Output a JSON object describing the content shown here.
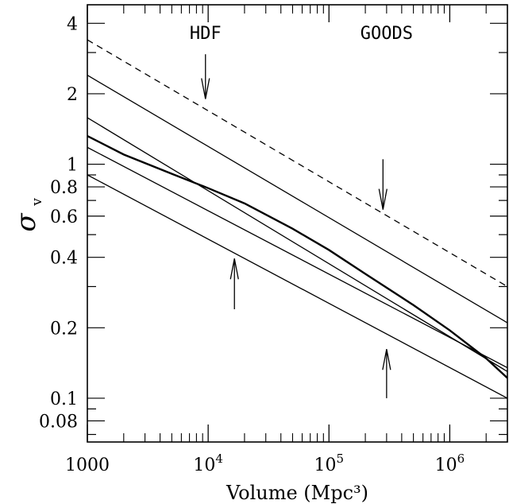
{
  "chart_data": {
    "type": "line",
    "title": "",
    "xlabel": "Volume (Mpc³)",
    "ylabel": "σ",
    "ylabel_subscript": "v",
    "x_scale": "log",
    "y_scale": "log",
    "xlim": [
      1000,
      3000000
    ],
    "ylim": [
      0.065,
      4.8
    ],
    "grid": false,
    "legend": "none",
    "x_ticks": [
      {
        "value": 1000,
        "label": "1000"
      },
      {
        "value": 10000,
        "label": "10",
        "sup": "4"
      },
      {
        "value": 100000,
        "label": "10",
        "sup": "5"
      },
      {
        "value": 1000000,
        "label": "10",
        "sup": "6"
      }
    ],
    "y_ticks": [
      {
        "value": 0.08,
        "label": "0.08"
      },
      {
        "value": 0.1,
        "label": "0.1"
      },
      {
        "value": 0.2,
        "label": "0.2"
      },
      {
        "value": 0.4,
        "label": "0.4"
      },
      {
        "value": 0.6,
        "label": "0.6"
      },
      {
        "value": 0.8,
        "label": "0.8"
      },
      {
        "value": 1,
        "label": "1"
      },
      {
        "value": 2,
        "label": "2"
      },
      {
        "value": 4,
        "label": "4"
      }
    ],
    "series": [
      {
        "style": "dashed",
        "width": 1.3,
        "x": [
          1000,
          3000000
        ],
        "y": [
          3.4,
          0.3
        ]
      },
      {
        "style": "solid",
        "width": 1.3,
        "x": [
          1000,
          3000000
        ],
        "y": [
          2.4,
          0.21
        ]
      },
      {
        "style": "solid",
        "width": 1.3,
        "x": [
          1000,
          3000000
        ],
        "y": [
          1.58,
          0.13
        ]
      },
      {
        "style": "solid",
        "width": 2.4,
        "x": [
          1000,
          2000,
          5000,
          10000,
          20000,
          50000,
          100000,
          200000,
          500000,
          1000000,
          2000000,
          3000000
        ],
        "y": [
          1.32,
          1.1,
          0.91,
          0.79,
          0.68,
          0.53,
          0.43,
          0.34,
          0.25,
          0.195,
          0.148,
          0.122
        ]
      },
      {
        "style": "solid",
        "width": 1.3,
        "x": [
          1000,
          3000000
        ],
        "y": [
          1.18,
          0.135
        ]
      },
      {
        "style": "solid",
        "width": 1.3,
        "x": [
          1000,
          3000000
        ],
        "y": [
          0.9,
          0.1
        ]
      }
    ],
    "annotations": [
      {
        "text": "HDF",
        "x": 9500,
        "y": 3.65
      },
      {
        "text": "GOODS",
        "x": 300000,
        "y": 3.65
      }
    ],
    "arrows": [
      {
        "x": 9500,
        "y_tail": 2.95,
        "y_head": 1.9
      },
      {
        "x": 280000,
        "y_tail": 1.05,
        "y_head": 0.64
      },
      {
        "x": 16500,
        "y_tail": 0.24,
        "y_head": 0.395
      },
      {
        "x": 300000,
        "y_tail": 0.1,
        "y_head": 0.162
      }
    ]
  }
}
